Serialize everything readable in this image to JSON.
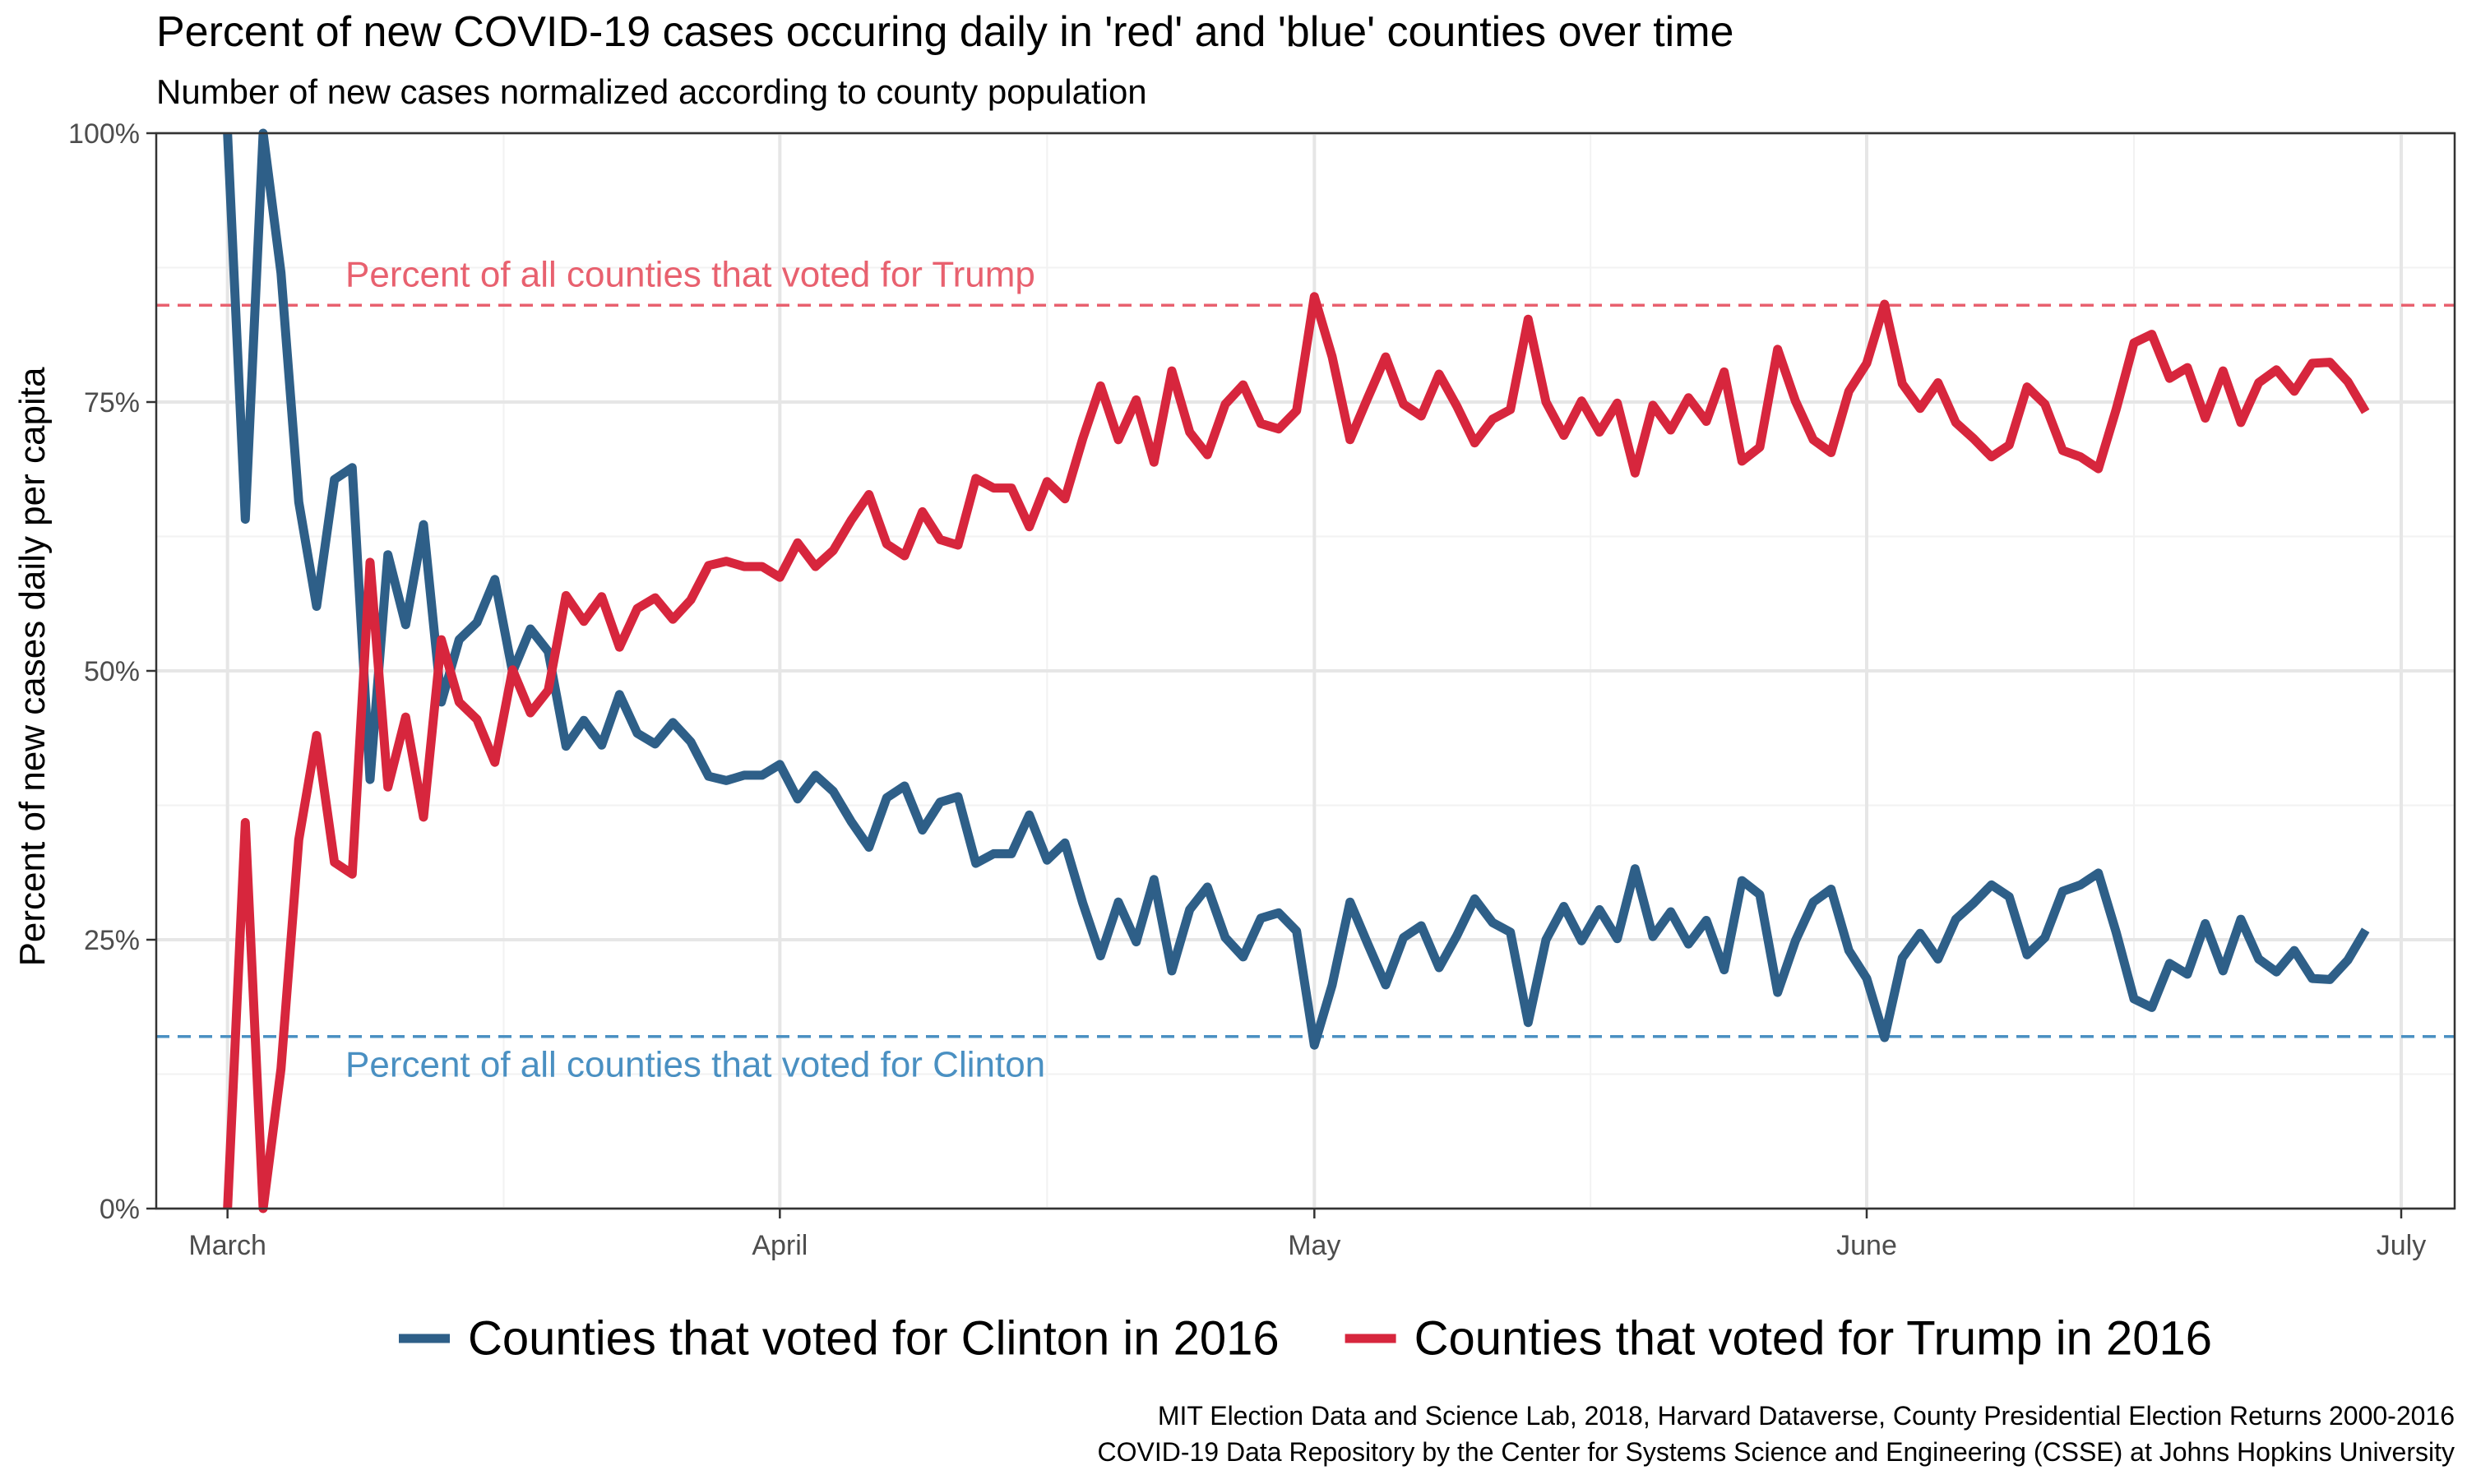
{
  "chart_data": {
    "type": "line",
    "title": "Percent of new COVID-19 cases occuring daily in 'red' and 'blue' counties over time",
    "subtitle": "Number of new cases normalized according to county population",
    "ylabel": "Percent of new cases daily per capita",
    "xlabel": "",
    "x_start": "2020-03-01",
    "ylim": [
      0,
      100
    ],
    "yticks": [
      {
        "value": 0,
        "label": "0%"
      },
      {
        "value": 25,
        "label": "25%"
      },
      {
        "value": 50,
        "label": "50%"
      },
      {
        "value": 75,
        "label": "75%"
      },
      {
        "value": 100,
        "label": "100%"
      }
    ],
    "xticks": [
      {
        "date": "2020-03-01",
        "label": "March"
      },
      {
        "date": "2020-04-01",
        "label": "April"
      },
      {
        "date": "2020-05-01",
        "label": "May"
      },
      {
        "date": "2020-06-01",
        "label": "June"
      },
      {
        "date": "2020-07-01",
        "label": "July"
      }
    ],
    "grid": true,
    "legend_position": "bottom",
    "series": [
      {
        "name": "Counties that voted for Clinton in 2016",
        "color": "#2e5f88",
        "values": [
          100,
          64.1,
          100,
          87.0,
          65.7,
          56.0,
          67.8,
          68.9,
          39.9,
          60.8,
          54.3,
          63.6,
          47.1,
          52.9,
          54.5,
          58.5,
          49.9,
          53.9,
          51.8,
          43.0,
          45.4,
          43.1,
          47.8,
          44.2,
          43.2,
          45.2,
          43.4,
          40.2,
          39.8,
          40.3,
          40.3,
          41.3,
          38.1,
          40.3,
          38.8,
          36.0,
          33.6,
          38.2,
          39.3,
          35.2,
          37.8,
          38.3,
          32.1,
          33.0,
          33.0,
          36.6,
          32.4,
          34.0,
          28.4,
          23.5,
          28.5,
          24.8,
          30.6,
          22.1,
          27.8,
          29.9,
          25.2,
          23.4,
          27.0,
          27.5,
          25.8,
          15.2,
          20.8,
          28.5,
          24.6,
          20.8,
          25.2,
          26.3,
          22.4,
          25.4,
          28.8,
          26.6,
          25.7,
          17.3,
          25.0,
          28.1,
          24.9,
          27.8,
          25.1,
          31.6,
          25.3,
          27.6,
          24.6,
          26.8,
          22.2,
          30.5,
          29.2,
          20.1,
          24.9,
          28.5,
          29.7,
          24.0,
          21.4,
          15.9,
          23.3,
          25.6,
          23.2,
          26.9,
          28.4,
          30.1,
          29.0,
          23.6,
          25.2,
          29.5,
          30.1,
          31.2,
          25.7,
          19.5,
          18.7,
          22.8,
          21.8,
          26.5,
          22.1,
          26.9,
          23.2,
          22.0,
          24.0,
          21.4,
          21.3,
          23.1,
          25.9
        ]
      },
      {
        "name": "Counties that voted for Trump in 2016",
        "color": "#d7263d",
        "values": [
          0,
          35.9,
          0,
          13.0,
          34.3,
          44.0,
          32.2,
          31.1,
          60.1,
          39.2,
          45.7,
          36.4,
          52.9,
          47.1,
          45.5,
          41.5,
          50.1,
          46.1,
          48.2,
          57.0,
          54.6,
          56.9,
          52.2,
          55.8,
          56.8,
          54.8,
          56.6,
          59.8,
          60.2,
          59.7,
          59.7,
          58.7,
          61.9,
          59.7,
          61.2,
          64.0,
          66.4,
          61.8,
          60.7,
          64.8,
          62.2,
          61.7,
          67.9,
          67.0,
          67.0,
          63.4,
          67.6,
          66.0,
          71.6,
          76.5,
          71.5,
          75.2,
          69.4,
          77.9,
          72.2,
          70.1,
          74.8,
          76.6,
          73.0,
          72.5,
          74.2,
          84.8,
          79.2,
          71.5,
          75.4,
          79.2,
          74.8,
          73.7,
          77.6,
          74.6,
          71.2,
          73.4,
          74.3,
          82.7,
          75.0,
          71.9,
          75.1,
          72.2,
          74.9,
          68.4,
          74.7,
          72.4,
          75.4,
          73.2,
          77.8,
          69.5,
          70.8,
          79.9,
          75.1,
          71.5,
          70.3,
          76.0,
          78.6,
          84.1,
          76.7,
          74.4,
          76.8,
          73.1,
          71.6,
          69.9,
          71.0,
          76.4,
          74.8,
          70.5,
          69.9,
          68.8,
          74.3,
          80.5,
          81.3,
          77.2,
          78.2,
          73.5,
          77.9,
          73.1,
          76.8,
          78.0,
          76.0,
          78.6,
          78.7,
          76.9,
          74.1
        ]
      }
    ],
    "reference_lines": [
      {
        "value": 84,
        "label": "Percent of all counties that voted for Trump",
        "color": "#e8616f"
      },
      {
        "value": 16,
        "label": "Percent of all counties that voted for Clinton",
        "color": "#4a90c2"
      }
    ]
  },
  "caption": {
    "line1": "MIT Election Data and Science Lab, 2018, Harvard Dataverse, County Presidential Election Returns 2000-2016",
    "line2": "COVID-19 Data Repository by the Center for Systems Science and Engineering (CSSE) at Johns Hopkins University"
  },
  "colors": {
    "grid_major": "#e6e6e6",
    "grid_minor": "#f2f2f2",
    "panel_border": "#333333",
    "axis_text": "#4d4d4d"
  }
}
